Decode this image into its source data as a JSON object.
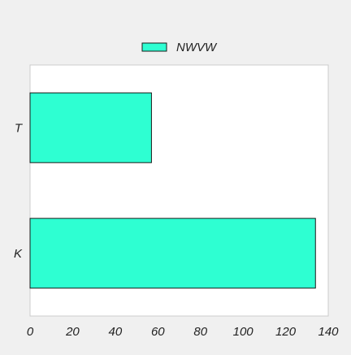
{
  "chart_data": {
    "type": "bar",
    "orientation": "horizontal",
    "categories": [
      "T",
      "K"
    ],
    "series": [
      {
        "name": "NWVW",
        "values": [
          57,
          134
        ]
      }
    ],
    "title": "",
    "xlabel": "",
    "ylabel": "",
    "xlim": [
      0,
      140
    ],
    "xticks": [
      "0",
      "20",
      "40",
      "60",
      "80",
      "100",
      "120",
      "140"
    ],
    "grid": false,
    "legend_position": "top-center",
    "colors": {
      "bar_fill": "#2effd2",
      "bar_stroke": "#1a1a1a",
      "plot_background": "#ffffff",
      "figure_background": "#f0f0f0",
      "axis_stroke": "#cccccc"
    }
  }
}
